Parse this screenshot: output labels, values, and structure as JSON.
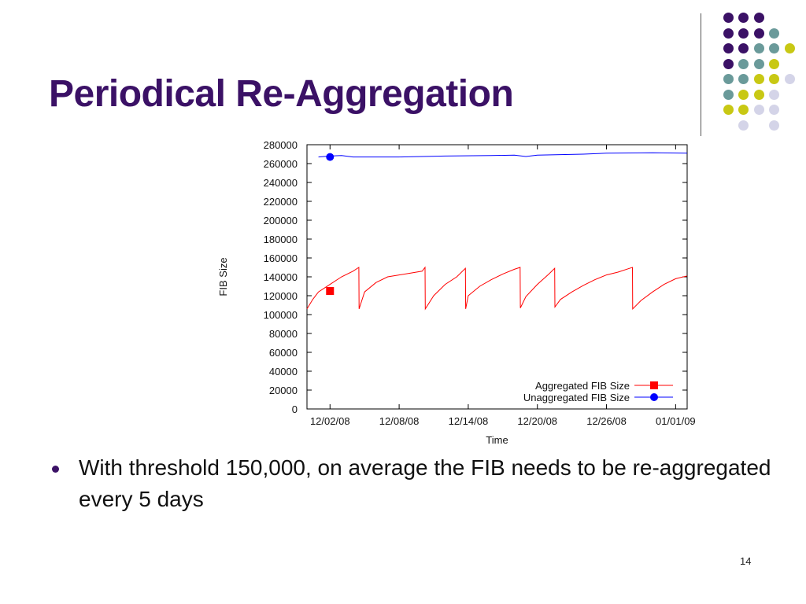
{
  "slide": {
    "title": "Periodical Re-Aggregation",
    "bullet": "With threshold 150,000, on average the FIB needs to be re-aggregated every 5 days",
    "page_number": "14"
  },
  "decoration": {
    "dot_colors": {
      "purple": "#3b1166",
      "teal": "#6a9a9a",
      "yellow": "#c8c814",
      "lavender": "#d4d4e8"
    },
    "dot_grid": [
      [
        null,
        "purple",
        "purple",
        "purple",
        null
      ],
      [
        null,
        "purple",
        "purple",
        "purple",
        "teal"
      ],
      [
        null,
        "purple",
        "purple",
        "teal",
        "teal",
        "yellow"
      ],
      [
        null,
        "purple",
        "teal",
        "teal",
        "yellow"
      ],
      [
        null,
        "teal",
        "teal",
        "yellow",
        "yellow",
        "lavender"
      ],
      [
        null,
        "teal",
        "yellow",
        "yellow",
        "lavender"
      ],
      [
        null,
        "yellow",
        "yellow",
        "lavender",
        "lavender"
      ],
      [
        null,
        null,
        "lavender",
        null,
        "lavender"
      ]
    ]
  },
  "chart_data": {
    "type": "line",
    "xlabel": "Time",
    "ylabel": "FIB Size",
    "ylim": [
      0,
      280000
    ],
    "y_ticks": [
      0,
      20000,
      40000,
      60000,
      80000,
      100000,
      120000,
      140000,
      160000,
      180000,
      200000,
      220000,
      240000,
      260000,
      280000
    ],
    "x_ticks": [
      "12/02/08",
      "12/08/08",
      "12/14/08",
      "12/20/08",
      "12/26/08",
      "01/01/09"
    ],
    "xlim": [
      "11/30/08",
      "01/02/09"
    ],
    "grid": false,
    "legend_position": "bottom-right",
    "series": [
      {
        "name": "Aggregated FIB Size",
        "color": "#ff0000",
        "marker": "square",
        "marker_point": {
          "x": "12/02/08",
          "y": 125000
        },
        "points": [
          [
            "11/30/08",
            106000
          ],
          [
            "11/30/08 12:00",
            116000
          ],
          [
            "12/01/08",
            124000
          ],
          [
            "12/02/08",
            132000
          ],
          [
            "12/03/08",
            140000
          ],
          [
            "12/04/08",
            146000
          ],
          [
            "12/04/08 12:00",
            150000
          ],
          [
            "12/04/08 12:30",
            106000
          ],
          [
            "12/05/08",
            124000
          ],
          [
            "12/06/08",
            134000
          ],
          [
            "12/07/08",
            140000
          ],
          [
            "12/08/08",
            142000
          ],
          [
            "12/09/08",
            144000
          ],
          [
            "12/10/08",
            146000
          ],
          [
            "12/10/08 06:00",
            150000
          ],
          [
            "12/10/08 06:30",
            106000
          ],
          [
            "12/11/08",
            120000
          ],
          [
            "12/12/08",
            132000
          ],
          [
            "12/13/08",
            140000
          ],
          [
            "12/13/08 18:00",
            149000
          ],
          [
            "12/13/08 18:30",
            106000
          ],
          [
            "12/14/08",
            120000
          ],
          [
            "12/15/08",
            130000
          ],
          [
            "12/16/08",
            137000
          ],
          [
            "12/17/08",
            143000
          ],
          [
            "12/18/08",
            148000
          ],
          [
            "12/18/08 12:00",
            150000
          ],
          [
            "12/18/08 12:30",
            107000
          ],
          [
            "12/19/08",
            119000
          ],
          [
            "12/20/08",
            132000
          ],
          [
            "12/21/08",
            143000
          ],
          [
            "12/21/08 12:00",
            149000
          ],
          [
            "12/21/08 12:30",
            108000
          ],
          [
            "12/22/08",
            116000
          ],
          [
            "12/23/08",
            124000
          ],
          [
            "12/24/08",
            131000
          ],
          [
            "12/25/08",
            137000
          ],
          [
            "12/26/08",
            142000
          ],
          [
            "12/27/08",
            145000
          ],
          [
            "12/28/08",
            149000
          ],
          [
            "12/28/08 06:00",
            150000
          ],
          [
            "12/28/08 06:30",
            106000
          ],
          [
            "12/29/08",
            115000
          ],
          [
            "12/30/08",
            124000
          ],
          [
            "12/31/08",
            132000
          ],
          [
            "01/01/09",
            138000
          ],
          [
            "01/02/09",
            141000
          ]
        ]
      },
      {
        "name": "Unaggregated FIB Size",
        "color": "#0000ff",
        "marker": "circle",
        "marker_point": {
          "x": "12/02/08",
          "y": 267000
        },
        "points": [
          [
            "12/01/08",
            267000
          ],
          [
            "12/02/08",
            268000
          ],
          [
            "12/03/08",
            268500
          ],
          [
            "12/04/08",
            267000
          ],
          [
            "12/08/08",
            267000
          ],
          [
            "12/12/08",
            268000
          ],
          [
            "12/16/08",
            268500
          ],
          [
            "12/18/08",
            269000
          ],
          [
            "12/19/08",
            267500
          ],
          [
            "12/20/08",
            269000
          ],
          [
            "12/24/08",
            270000
          ],
          [
            "12/26/08",
            271000
          ],
          [
            "12/30/08",
            271500
          ],
          [
            "01/02/09",
            271000
          ]
        ]
      }
    ]
  }
}
